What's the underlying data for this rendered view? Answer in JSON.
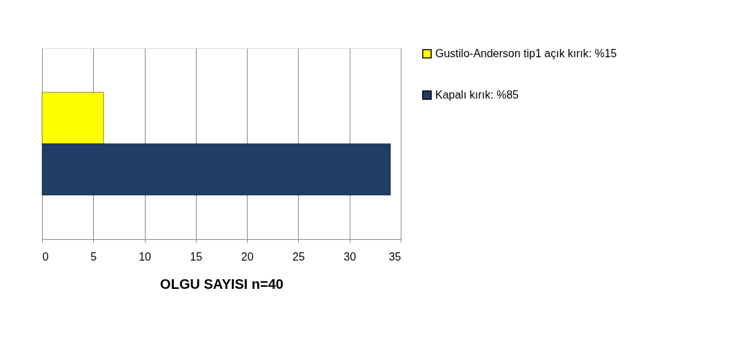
{
  "chart_data": {
    "type": "bar",
    "orientation": "horizontal",
    "xlabel": "OLGU SAYISI n=40",
    "categories": [
      null
    ],
    "series": [
      {
        "name": "Gustilo-Anderson tip1 açık kırık: %15",
        "color": "#ffff00",
        "values": [
          6
        ]
      },
      {
        "name": "Kapalı kırık: %85",
        "color": "#1f3d66",
        "values": [
          34
        ]
      }
    ],
    "xlim": [
      0,
      35
    ],
    "xticks": [
      0,
      5,
      10,
      15,
      20,
      25,
      30,
      35
    ],
    "grid": "x",
    "legend": "right",
    "tick_labels": "x"
  }
}
